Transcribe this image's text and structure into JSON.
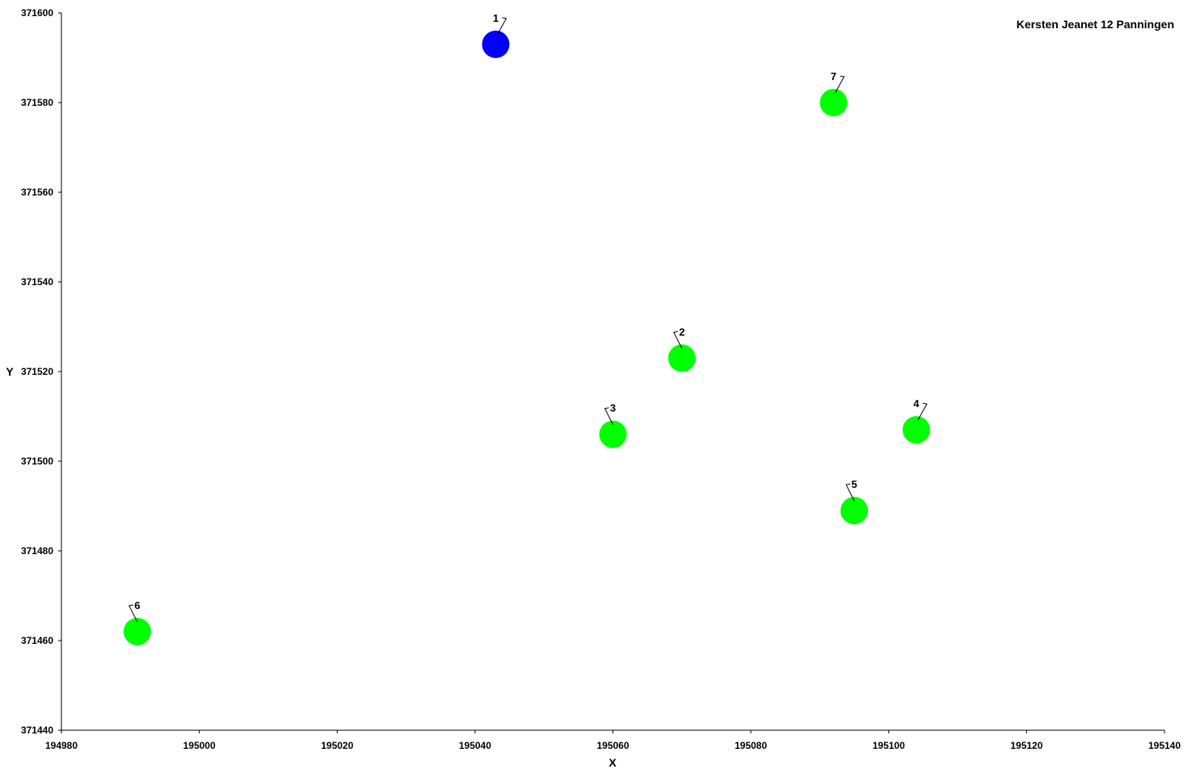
{
  "chart_data": {
    "type": "scatter",
    "title": "Kersten Jeanet 12 Panningen",
    "xlabel": "X",
    "ylabel": "Y",
    "xlim": [
      194980,
      195140
    ],
    "ylim": [
      371440,
      371600
    ],
    "x_ticks": [
      194980,
      195000,
      195020,
      195040,
      195060,
      195080,
      195100,
      195120,
      195140
    ],
    "y_ticks": [
      371440,
      371460,
      371480,
      371500,
      371520,
      371540,
      371560,
      371580,
      371600
    ],
    "grid": false,
    "points": [
      {
        "label": "1",
        "x": 195043,
        "y": 371593,
        "color": "#0000ff",
        "leader": "right"
      },
      {
        "label": "2",
        "x": 195070,
        "y": 371523,
        "color": "#00ff00",
        "leader": "left"
      },
      {
        "label": "3",
        "x": 195060,
        "y": 371506,
        "color": "#00ff00",
        "leader": "left"
      },
      {
        "label": "4",
        "x": 195104,
        "y": 371507,
        "color": "#00ff00",
        "leader": "right"
      },
      {
        "label": "5",
        "x": 195095,
        "y": 371489,
        "color": "#00ff00",
        "leader": "left"
      },
      {
        "label": "6",
        "x": 194991,
        "y": 371462,
        "color": "#00ff00",
        "leader": "left"
      },
      {
        "label": "7",
        "x": 195092,
        "y": 371580,
        "color": "#00ff00",
        "leader": "right"
      }
    ]
  }
}
